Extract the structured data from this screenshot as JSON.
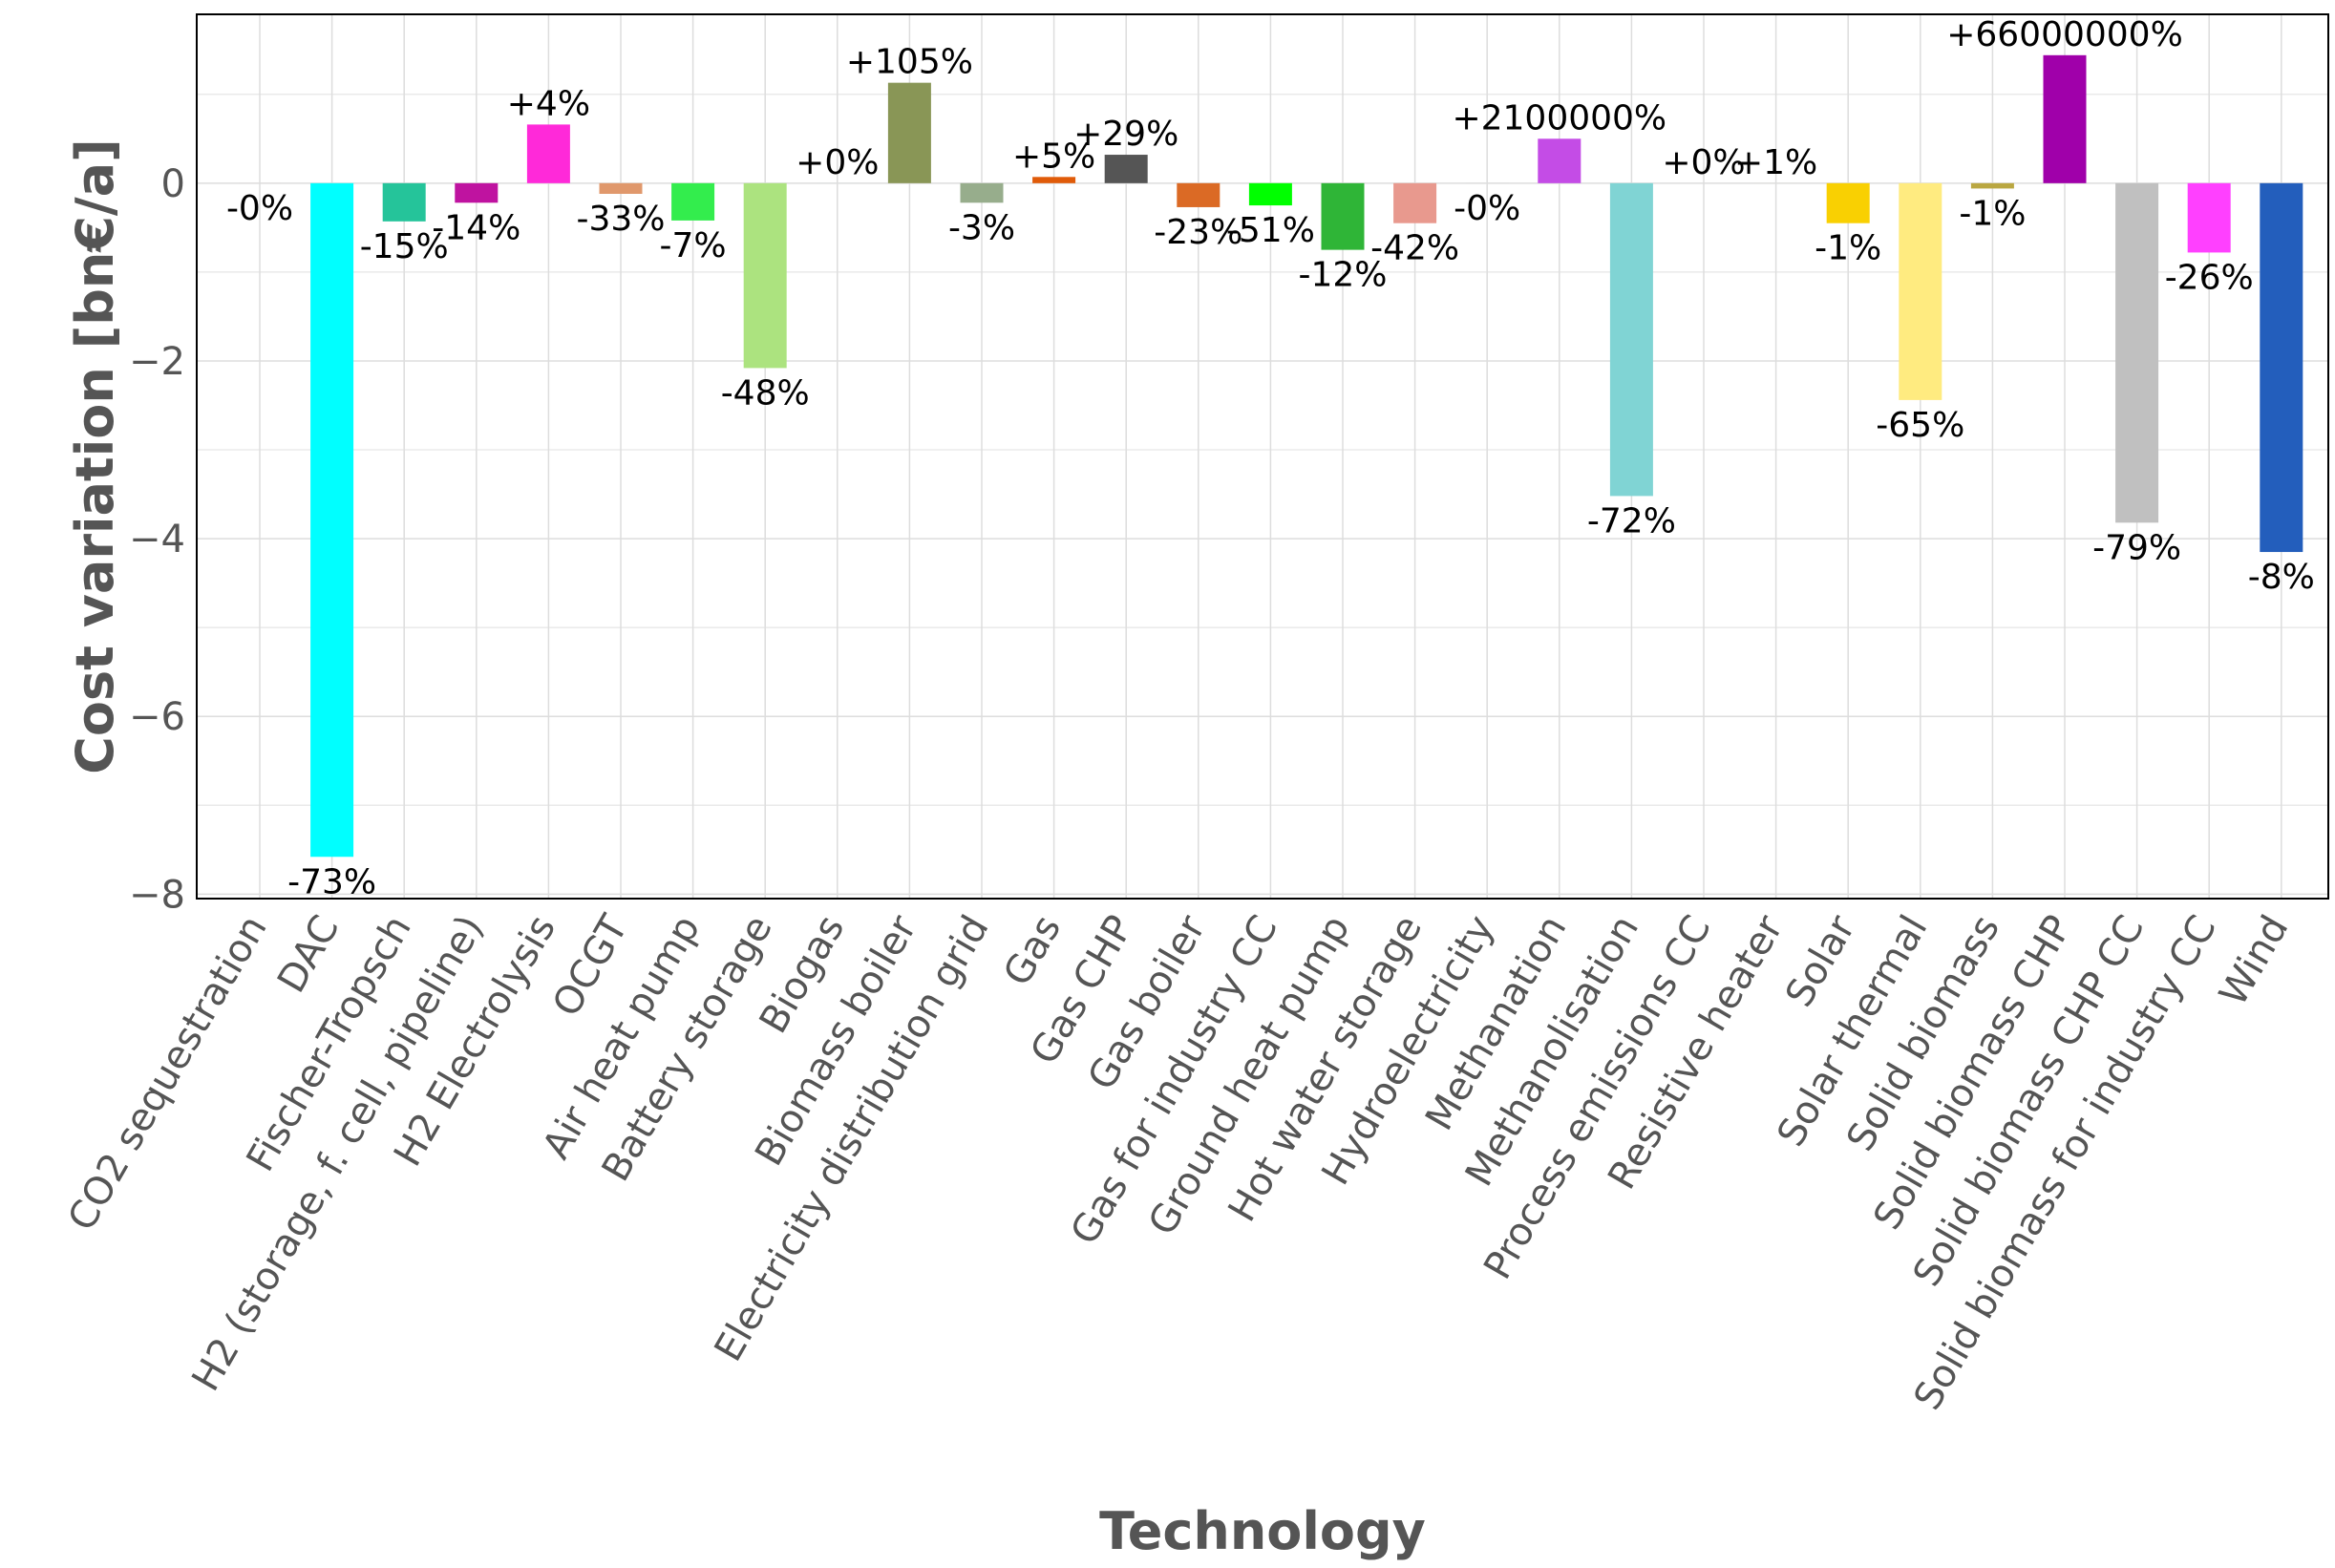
{
  "chart_data": {
    "type": "bar",
    "title": "",
    "xlabel": "Technology",
    "ylabel": "Cost variation [bn€/a]",
    "ylim": [
      -8.05,
      1.9
    ],
    "yticks": [
      {
        "value": 0,
        "label": "0"
      },
      {
        "value": -2,
        "label": "−2"
      },
      {
        "value": -4,
        "label": "−4"
      },
      {
        "value": -6,
        "label": "−6"
      },
      {
        "value": -8,
        "label": "−8"
      }
    ],
    "grid": true,
    "categories": [
      "CO2 sequestration",
      "DAC",
      "Fischer-Tropsch",
      "H2 (storage, f. cell, pipeline)",
      "H2 Electrolysis",
      "OCGT",
      "Air heat pump",
      "Battery storage",
      "Biogas",
      "Biomass boiler",
      "Electricity distribution grid",
      "Gas",
      "Gas CHP",
      "Gas boiler",
      "Gas for industry CC",
      "Ground heat pump",
      "Hot water storage",
      "Hydroelectricity",
      "Methanation",
      "Methanolisation",
      "Process emissions CC",
      "Resistive heater",
      "Solar",
      "Solar thermal",
      "Solid biomass",
      "Solid biomass CHP",
      "Solid biomass CHP CC",
      "Solid biomass for industry CC",
      "Wind"
    ],
    "values": [
      0.0,
      -7.58,
      -0.43,
      -0.22,
      0.66,
      -0.12,
      -0.42,
      -2.08,
      0.0,
      1.13,
      -0.22,
      0.07,
      0.32,
      -0.27,
      -0.25,
      -0.75,
      -0.45,
      0.0,
      0.5,
      -3.52,
      0.0,
      0.0,
      -0.45,
      -2.44,
      -0.06,
      1.44,
      -3.82,
      -0.78,
      -4.15
    ],
    "colors": [
      "#f29dae",
      "#00ffff",
      "#25c49a",
      "#bf13a0",
      "#ff29d9",
      "#e0986c",
      "#33ed4d",
      "#ace37f",
      "#c0ffee",
      "#899656",
      "#97ad8c",
      "#e05b09",
      "#555555",
      "#db6a25",
      "#00ff00",
      "#2fb537",
      "#e8998e",
      "#298c81",
      "#c44ce6",
      "#80d4d4",
      "#e0e0e0",
      "#d8f9b8",
      "#f9d002",
      "#ffeb80",
      "#baa741",
      "#a000aa",
      "#c0c0c0",
      "#ff40ff",
      "#235ebc"
    ],
    "data_labels": [
      "-0%",
      "-73%",
      "-15%",
      "-14%",
      "+4%",
      "-33%",
      "-7%",
      "-48%",
      "+0%",
      "+105%",
      "-3%",
      "+5%",
      "+29%",
      "-23%",
      "-51%",
      "-12%",
      "-42%",
      "-0%",
      "+2100000%",
      "-72%",
      "+0%",
      "+1%",
      "-1%",
      "-65%",
      "-1%",
      "+66000000%",
      "-79%",
      "-26%",
      "-8%"
    ]
  }
}
